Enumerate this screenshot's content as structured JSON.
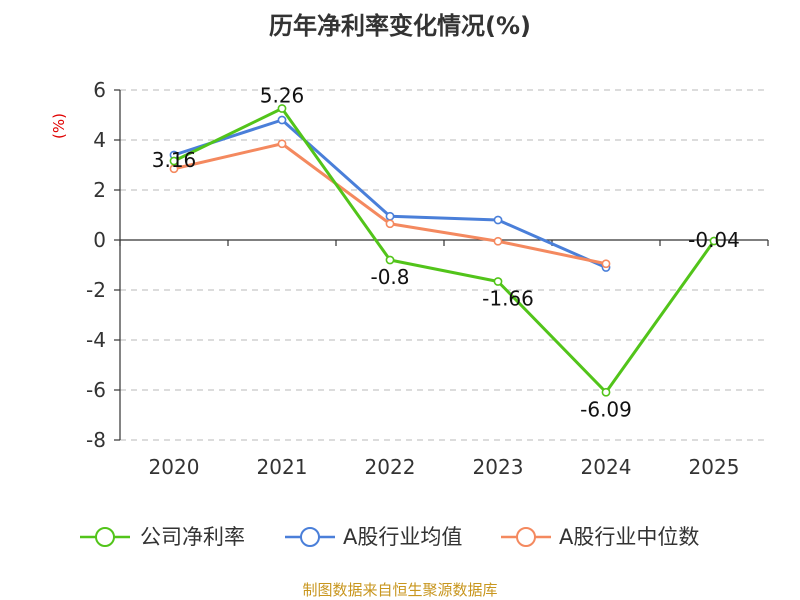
{
  "chart_data": {
    "type": "line",
    "title": "历年净利率变化情况(%)",
    "ylabel": "(%)",
    "categories": [
      "2020",
      "2021",
      "2022",
      "2023",
      "2024",
      "2025"
    ],
    "ylim": [
      -8,
      6
    ],
    "yticks": [
      6,
      4,
      2,
      0,
      -2,
      -4,
      -6,
      -8
    ],
    "grid": true,
    "legend_position": "bottom",
    "series": [
      {
        "name": "公司净利率",
        "color": "#52c41a",
        "values": [
          3.16,
          5.26,
          -0.8,
          -1.66,
          -6.09,
          -0.04
        ],
        "labels": [
          "3.16",
          "5.26",
          "-0.8",
          "-1.66",
          "-6.09",
          "-0.04"
        ]
      },
      {
        "name": "A股行业均值",
        "color": "#4a7fd9",
        "values": [
          3.4,
          4.8,
          0.95,
          0.8,
          -1.1,
          null
        ]
      },
      {
        "name": "A股行业中位数",
        "color": "#f4895f",
        "values": [
          2.85,
          3.85,
          0.65,
          -0.05,
          -0.95,
          null
        ]
      }
    ]
  },
  "footer": {
    "source": "制图数据来自恒生聚源数据库"
  }
}
